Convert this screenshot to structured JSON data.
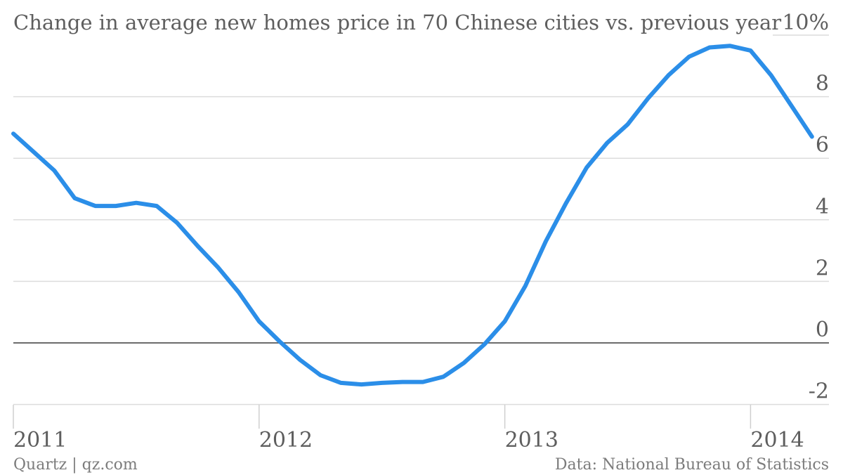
{
  "chart_data": {
    "type": "line",
    "title": "Change in average new homes price in 70 Chinese cities vs. previous year",
    "ylim": [
      -2.2,
      10
    ],
    "y_ticks": [
      -2,
      0,
      2,
      4,
      6,
      8,
      10
    ],
    "y_tick_labels": [
      "-2",
      "0",
      "2",
      "4",
      "6",
      "8",
      "10%"
    ],
    "x_ticks": [
      "2011",
      "2012",
      "2013",
      "2014"
    ],
    "grid": true,
    "series": [
      {
        "color": "#2b8ee8",
        "points": [
          [
            "2011-01",
            6.8
          ],
          [
            "2011-02",
            6.2
          ],
          [
            "2011-03",
            5.6
          ],
          [
            "2011-04",
            4.7
          ],
          [
            "2011-05",
            4.45
          ],
          [
            "2011-06",
            4.45
          ],
          [
            "2011-07",
            4.55
          ],
          [
            "2011-08",
            4.45
          ],
          [
            "2011-09",
            3.9
          ],
          [
            "2011-10",
            3.15
          ],
          [
            "2011-11",
            2.45
          ],
          [
            "2011-12",
            1.65
          ],
          [
            "2012-01",
            0.7
          ],
          [
            "2012-02",
            0.05
          ],
          [
            "2012-03",
            -0.55
          ],
          [
            "2012-04",
            -1.05
          ],
          [
            "2012-05",
            -1.3
          ],
          [
            "2012-06",
            -1.35
          ],
          [
            "2012-07",
            -1.3
          ],
          [
            "2012-08",
            -1.27
          ],
          [
            "2012-09",
            -1.27
          ],
          [
            "2012-10",
            -1.1
          ],
          [
            "2012-11",
            -0.65
          ],
          [
            "2012-12",
            -0.05
          ],
          [
            "2013-01",
            0.7
          ],
          [
            "2013-02",
            1.85
          ],
          [
            "2013-03",
            3.3
          ],
          [
            "2013-04",
            4.55
          ],
          [
            "2013-05",
            5.7
          ],
          [
            "2013-06",
            6.5
          ],
          [
            "2013-07",
            7.1
          ],
          [
            "2013-08",
            7.95
          ],
          [
            "2013-09",
            8.7
          ],
          [
            "2013-10",
            9.3
          ],
          [
            "2013-11",
            9.6
          ],
          [
            "2013-12",
            9.65
          ],
          [
            "2014-01",
            9.5
          ],
          [
            "2014-02",
            8.7
          ],
          [
            "2014-03",
            7.7
          ],
          [
            "2014-04",
            6.7
          ]
        ]
      }
    ]
  },
  "footer": {
    "source_left": "Quartz | qz.com",
    "source_right": "Data: National Bureau of Statistics"
  }
}
